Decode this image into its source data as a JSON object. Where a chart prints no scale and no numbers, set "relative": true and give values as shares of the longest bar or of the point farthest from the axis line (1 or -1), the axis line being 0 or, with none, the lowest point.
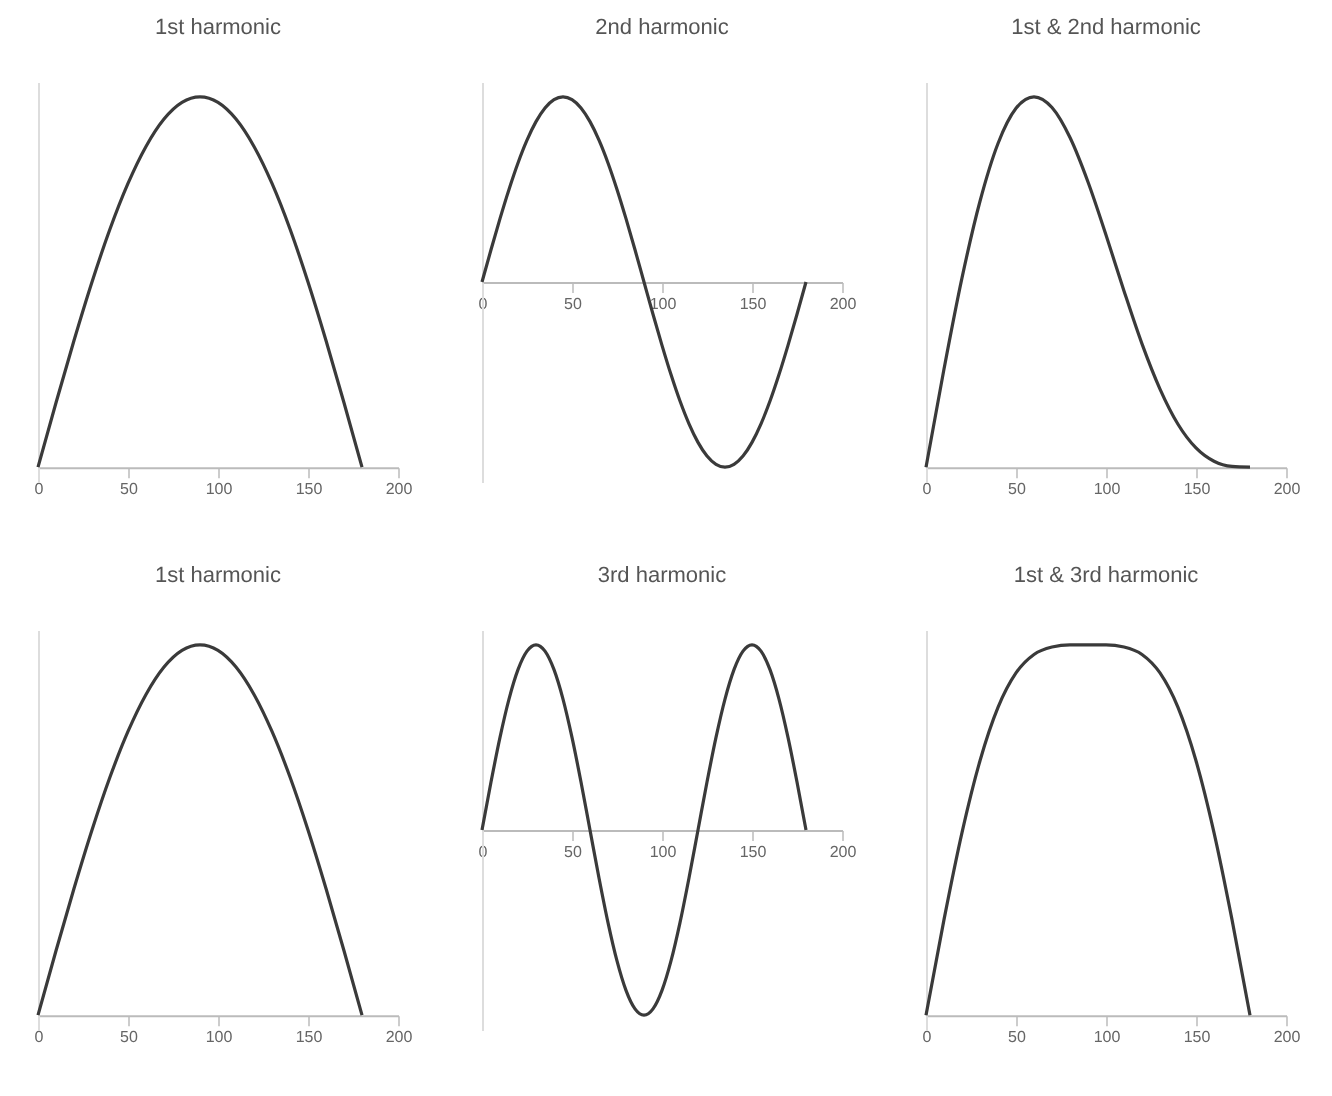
{
  "chart_data": [
    {
      "type": "line",
      "title": "1st harmonic",
      "relative": true,
      "tick_labels": "x",
      "xlim": [
        0,
        200
      ],
      "xticks": [
        0,
        50,
        100,
        150,
        200
      ],
      "x": [
        0,
        10,
        20,
        30,
        40,
        50,
        60,
        70,
        80,
        90,
        100,
        110,
        120,
        130,
        140,
        150,
        160,
        170,
        180
      ],
      "series": [
        {
          "color": "#3a3a3a",
          "values": [
            0,
            0.174,
            0.342,
            0.5,
            0.643,
            0.766,
            0.866,
            0.94,
            0.985,
            1,
            0.985,
            0.94,
            0.866,
            0.766,
            0.643,
            0.5,
            0.342,
            0.174,
            0
          ]
        }
      ]
    },
    {
      "type": "line",
      "title": "2nd harmonic",
      "relative": true,
      "tick_labels": "x",
      "xlim": [
        0,
        200
      ],
      "xticks": [
        0,
        50,
        100,
        150,
        200
      ],
      "x": [
        0,
        5,
        10,
        15,
        20,
        25,
        30,
        35,
        40,
        45,
        50,
        55,
        60,
        65,
        70,
        75,
        80,
        85,
        90,
        95,
        100,
        105,
        110,
        115,
        120,
        125,
        130,
        135,
        140,
        145,
        150,
        155,
        160,
        165,
        170,
        175,
        180
      ],
      "series": [
        {
          "color": "#3a3a3a",
          "values": [
            0,
            0.174,
            0.342,
            0.5,
            0.643,
            0.766,
            0.866,
            0.94,
            0.985,
            1,
            0.985,
            0.94,
            0.866,
            0.766,
            0.643,
            0.5,
            0.342,
            0.174,
            0,
            -0.174,
            -0.342,
            -0.5,
            -0.643,
            -0.766,
            -0.866,
            -0.94,
            -0.985,
            -1,
            -0.985,
            -0.94,
            -0.866,
            -0.766,
            -0.643,
            -0.5,
            -0.342,
            -0.174,
            0
          ]
        }
      ]
    },
    {
      "type": "line",
      "title": "1st & 2nd harmonic",
      "relative": true,
      "tick_labels": "x",
      "xlim": [
        0,
        200
      ],
      "xticks": [
        0,
        50,
        100,
        150,
        200
      ],
      "x": [
        0,
        10,
        20,
        30,
        40,
        50,
        60,
        70,
        80,
        90,
        100,
        110,
        120,
        130,
        140,
        150,
        160,
        170,
        180
      ],
      "series": [
        {
          "color": "#3a3a3a",
          "values": [
            0,
            0.265,
            0.511,
            0.718,
            0.874,
            0.969,
            1,
            0.971,
            0.89,
            0.77,
            0.627,
            0.476,
            0.333,
            0.211,
            0.116,
            0.052,
            0.016,
            0.002,
            0
          ]
        }
      ]
    },
    {
      "type": "line",
      "title": "1st harmonic",
      "relative": true,
      "tick_labels": "x",
      "xlim": [
        0,
        200
      ],
      "xticks": [
        0,
        50,
        100,
        150,
        200
      ],
      "x": [
        0,
        10,
        20,
        30,
        40,
        50,
        60,
        70,
        80,
        90,
        100,
        110,
        120,
        130,
        140,
        150,
        160,
        170,
        180
      ],
      "series": [
        {
          "color": "#3a3a3a",
          "values": [
            0,
            0.174,
            0.342,
            0.5,
            0.643,
            0.766,
            0.866,
            0.94,
            0.985,
            1,
            0.985,
            0.94,
            0.866,
            0.766,
            0.643,
            0.5,
            0.342,
            0.174,
            0
          ]
        }
      ]
    },
    {
      "type": "line",
      "title": "3rd harmonic",
      "relative": true,
      "tick_labels": "x",
      "xlim": [
        0,
        200
      ],
      "xticks": [
        0,
        50,
        100,
        150,
        200
      ],
      "x": [
        0,
        5,
        10,
        15,
        20,
        25,
        30,
        35,
        40,
        45,
        50,
        55,
        60,
        65,
        70,
        75,
        80,
        85,
        90,
        95,
        100,
        105,
        110,
        115,
        120,
        125,
        130,
        135,
        140,
        145,
        150,
        155,
        160,
        165,
        170,
        175,
        180
      ],
      "series": [
        {
          "color": "#3a3a3a",
          "values": [
            0,
            0.259,
            0.5,
            0.707,
            0.866,
            0.966,
            1,
            0.966,
            0.866,
            0.707,
            0.5,
            0.259,
            0,
            -0.259,
            -0.5,
            -0.707,
            -0.866,
            -0.966,
            -1,
            -0.966,
            -0.866,
            -0.707,
            -0.5,
            -0.259,
            0,
            0.259,
            0.5,
            0.707,
            0.866,
            0.966,
            1,
            0.966,
            0.866,
            0.707,
            0.5,
            0.259,
            0
          ]
        }
      ]
    },
    {
      "type": "line",
      "title": "1st & 3rd harmonic",
      "relative": true,
      "tick_labels": "x",
      "xlim": [
        0,
        200
      ],
      "xticks": [
        0,
        50,
        100,
        150,
        200
      ],
      "x": [
        0,
        10,
        20,
        30,
        40,
        50,
        60,
        70,
        80,
        90,
        100,
        110,
        120,
        130,
        140,
        150,
        160,
        170,
        180
      ],
      "series": [
        {
          "color": "#3a3a3a",
          "values": [
            0,
            0.258,
            0.493,
            0.687,
            0.831,
            0.924,
            0.974,
            0.994,
            1,
            1,
            1,
            0.994,
            0.974,
            0.924,
            0.831,
            0.687,
            0.493,
            0.258,
            0
          ]
        }
      ]
    }
  ]
}
